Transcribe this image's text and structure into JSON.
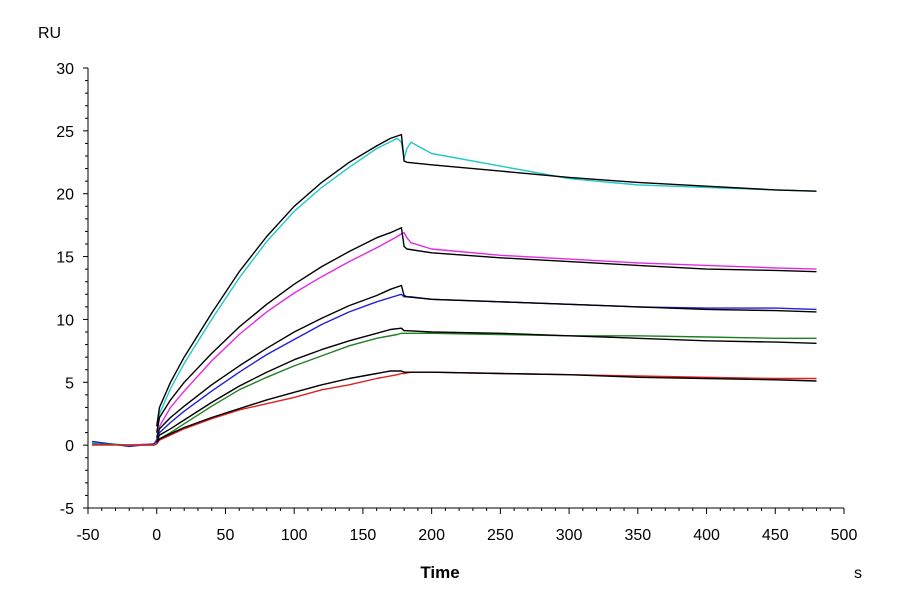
{
  "chart_data": {
    "type": "line",
    "title": "",
    "xlabel": "Time",
    "ylabel": "RU",
    "x_unit": "s",
    "xlim": [
      -50,
      500
    ],
    "ylim": [
      -5,
      30
    ],
    "x_ticks": [
      -50,
      0,
      50,
      100,
      150,
      200,
      250,
      300,
      350,
      400,
      450,
      500
    ],
    "y_ticks": [
      -5,
      0,
      5,
      10,
      15,
      20,
      25,
      30
    ],
    "x_tick_labels": [
      "-50",
      "0",
      "50",
      "100",
      "150",
      "200",
      "250",
      "300",
      "350",
      "400",
      "450",
      "500"
    ],
    "y_tick_labels": [
      "-5",
      "0",
      "5",
      "10",
      "15",
      "20",
      "25",
      "30"
    ],
    "grid": false,
    "legend": "none",
    "series": [
      {
        "color": "#20c8c8",
        "x": [
          -47,
          -20,
          -2,
          0,
          2,
          10,
          20,
          40,
          60,
          80,
          100,
          120,
          140,
          160,
          175,
          178,
          180,
          182,
          185,
          200,
          250,
          300,
          350,
          400,
          450,
          480
        ],
        "y": [
          0.2,
          0,
          0.1,
          0.5,
          2.5,
          4.5,
          6.5,
          10.0,
          13.3,
          16.2,
          18.6,
          20.5,
          22.1,
          23.6,
          24.4,
          24.1,
          22.8,
          23.6,
          24.1,
          23.2,
          22.2,
          21.2,
          20.7,
          20.5,
          20.3,
          20.2
        ]
      },
      {
        "color": "#e628e6",
        "x": [
          -47,
          -20,
          -2,
          0,
          2,
          10,
          20,
          40,
          60,
          80,
          100,
          120,
          140,
          160,
          175,
          178,
          180,
          182,
          185,
          200,
          250,
          300,
          350,
          400,
          450,
          480
        ],
        "y": [
          0.1,
          0,
          0.1,
          0.4,
          1.5,
          3.0,
          4.3,
          6.7,
          8.8,
          10.6,
          12.1,
          13.4,
          14.6,
          15.7,
          16.6,
          16.8,
          16.9,
          16.5,
          16.1,
          15.6,
          15.1,
          14.8,
          14.5,
          14.3,
          14.1,
          14.0
        ]
      },
      {
        "color": "#2020d8",
        "x": [
          -47,
          -20,
          -2,
          0,
          2,
          10,
          20,
          40,
          60,
          80,
          100,
          120,
          140,
          160,
          175,
          178,
          180,
          185,
          200,
          250,
          300,
          350,
          400,
          450,
          480
        ],
        "y": [
          0.3,
          -0.1,
          0.1,
          0.3,
          1.0,
          1.8,
          2.7,
          4.3,
          5.8,
          7.2,
          8.4,
          9.6,
          10.6,
          11.4,
          11.9,
          12.0,
          11.8,
          11.8,
          11.6,
          11.4,
          11.2,
          11.0,
          10.9,
          10.9,
          10.8
        ]
      },
      {
        "color": "#208020",
        "x": [
          -47,
          -20,
          -2,
          0,
          2,
          10,
          20,
          40,
          60,
          80,
          100,
          120,
          140,
          160,
          175,
          178,
          180,
          185,
          200,
          250,
          300,
          350,
          400,
          450,
          480
        ],
        "y": [
          0.1,
          0,
          0,
          0.1,
          0.5,
          1.0,
          1.7,
          3.1,
          4.4,
          5.4,
          6.3,
          7.1,
          7.9,
          8.5,
          8.8,
          8.9,
          8.9,
          8.9,
          8.9,
          8.8,
          8.7,
          8.7,
          8.6,
          8.5,
          8.5
        ]
      },
      {
        "color": "#e02020",
        "x": [
          -47,
          -20,
          -2,
          0,
          2,
          10,
          20,
          40,
          60,
          80,
          100,
          120,
          140,
          160,
          175,
          178,
          180,
          185,
          200,
          250,
          300,
          350,
          400,
          450,
          480
        ],
        "y": [
          0,
          0,
          0,
          0.1,
          0.4,
          0.8,
          1.3,
          2.1,
          2.8,
          3.3,
          3.8,
          4.4,
          4.8,
          5.3,
          5.6,
          5.7,
          5.7,
          5.8,
          5.8,
          5.7,
          5.6,
          5.5,
          5.4,
          5.3,
          5.3
        ]
      },
      {
        "color": "#000000",
        "x": [
          0,
          2,
          10,
          20,
          40,
          60,
          80,
          100,
          120,
          140,
          160,
          170,
          178,
          180,
          182,
          200,
          250,
          300,
          350,
          400,
          450,
          480
        ],
        "y": [
          1.5,
          3.0,
          5.0,
          7.0,
          10.5,
          13.8,
          16.6,
          19.0,
          20.9,
          22.5,
          23.8,
          24.4,
          24.7,
          22.6,
          22.5,
          22.3,
          21.8,
          21.3,
          20.9,
          20.6,
          20.3,
          20.2
        ]
      },
      {
        "color": "#000000",
        "x": [
          0,
          2,
          10,
          20,
          40,
          60,
          80,
          100,
          120,
          140,
          160,
          170,
          178,
          180,
          182,
          200,
          250,
          300,
          350,
          400,
          450,
          480
        ],
        "y": [
          1.0,
          2.2,
          3.6,
          5.0,
          7.3,
          9.4,
          11.2,
          12.8,
          14.2,
          15.4,
          16.5,
          16.9,
          17.3,
          15.8,
          15.6,
          15.3,
          14.9,
          14.6,
          14.3,
          14.0,
          13.9,
          13.8
        ]
      },
      {
        "color": "#000000",
        "x": [
          0,
          2,
          10,
          20,
          40,
          60,
          80,
          100,
          120,
          140,
          160,
          170,
          178,
          180,
          182,
          200,
          250,
          300,
          350,
          400,
          450,
          480
        ],
        "y": [
          0.6,
          1.3,
          2.2,
          3.1,
          4.8,
          6.3,
          7.7,
          9.0,
          10.1,
          11.1,
          11.9,
          12.4,
          12.7,
          11.9,
          11.8,
          11.6,
          11.4,
          11.2,
          11.0,
          10.8,
          10.7,
          10.6
        ]
      },
      {
        "color": "#000000",
        "x": [
          0,
          2,
          10,
          20,
          40,
          60,
          80,
          100,
          120,
          140,
          160,
          170,
          178,
          180,
          182,
          200,
          250,
          300,
          350,
          400,
          450,
          480
        ],
        "y": [
          0.3,
          0.8,
          1.3,
          2.0,
          3.4,
          4.7,
          5.8,
          6.8,
          7.6,
          8.3,
          8.9,
          9.2,
          9.3,
          9.1,
          9.1,
          9.0,
          8.9,
          8.7,
          8.5,
          8.3,
          8.2,
          8.1
        ]
      },
      {
        "color": "#000000",
        "x": [
          0,
          2,
          10,
          20,
          40,
          60,
          80,
          100,
          120,
          140,
          160,
          170,
          178,
          180,
          182,
          200,
          250,
          300,
          350,
          400,
          450,
          480
        ],
        "y": [
          0.2,
          0.5,
          0.9,
          1.4,
          2.2,
          2.9,
          3.6,
          4.2,
          4.8,
          5.3,
          5.7,
          5.9,
          5.9,
          5.8,
          5.8,
          5.8,
          5.7,
          5.6,
          5.4,
          5.3,
          5.2,
          5.1
        ]
      }
    ]
  }
}
